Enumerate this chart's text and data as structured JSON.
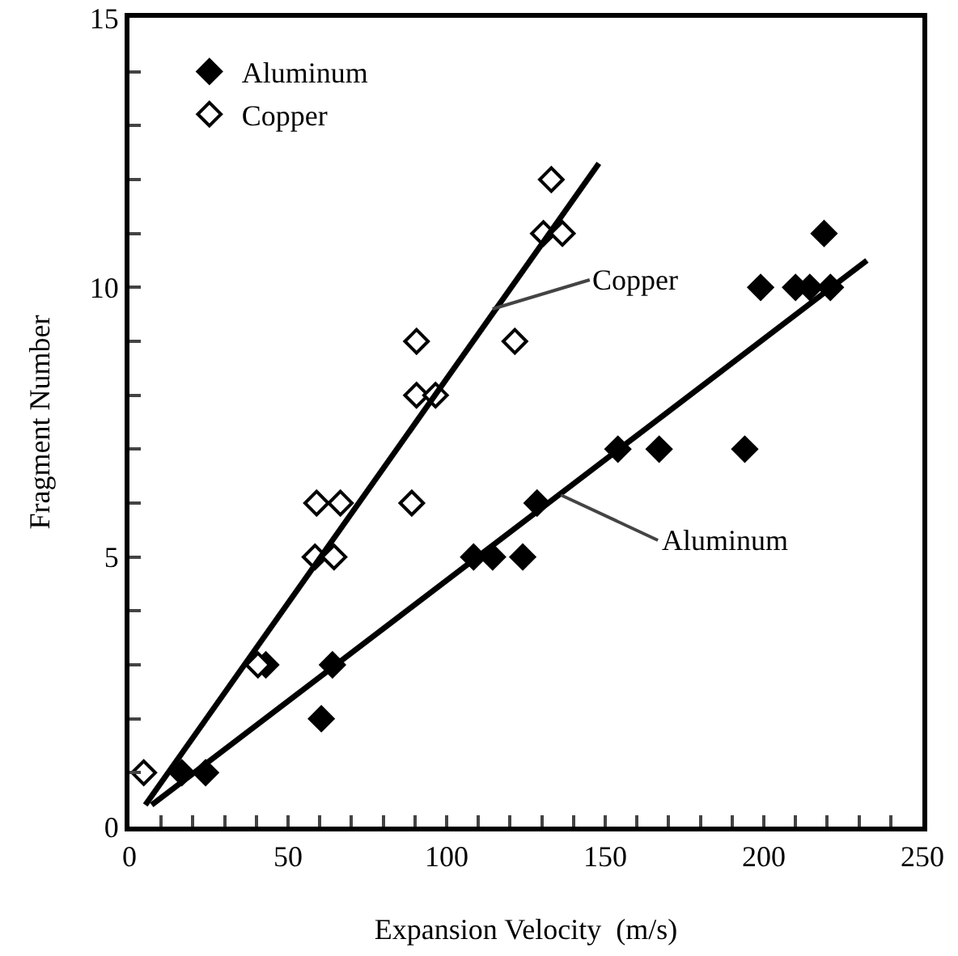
{
  "chart_data": {
    "type": "scatter",
    "xlabel": "Expansion Velocity  (m/s)",
    "ylabel": "Fragment Number",
    "xlim": [
      0,
      250
    ],
    "ylim": [
      0,
      15
    ],
    "xticks": [
      0,
      {
        "value": 10,
        "label": null
      },
      {
        "value": 20,
        "label": null
      },
      {
        "value": 30,
        "label": null
      },
      {
        "value": 40,
        "label": null
      },
      50,
      {
        "value": 60,
        "label": null
      },
      {
        "value": 70,
        "label": null
      },
      {
        "value": 80,
        "label": null
      },
      {
        "value": 90,
        "label": null
      },
      100,
      {
        "value": 110,
        "label": null
      },
      {
        "value": 120,
        "label": null
      },
      {
        "value": 130,
        "label": null
      },
      {
        "value": 140,
        "label": null
      },
      150,
      {
        "value": 160,
        "label": null
      },
      {
        "value": 170,
        "label": null
      },
      {
        "value": 180,
        "label": null
      },
      {
        "value": 190,
        "label": null
      },
      200,
      {
        "value": 210,
        "label": null
      },
      {
        "value": 220,
        "label": null
      },
      {
        "value": 230,
        "label": null
      },
      {
        "value": 240,
        "label": null
      },
      250
    ],
    "yticks": [
      0,
      {
        "value": 1,
        "label": null
      },
      {
        "value": 2,
        "label": null
      },
      {
        "value": 3,
        "label": null
      },
      {
        "value": 4,
        "label": null
      },
      5,
      {
        "value": 6,
        "label": null
      },
      {
        "value": 7,
        "label": null
      },
      {
        "value": 8,
        "label": null
      },
      {
        "value": 9,
        "label": null
      },
      10,
      {
        "value": 11,
        "label": null
      },
      {
        "value": 12,
        "label": null
      },
      {
        "value": 13,
        "label": null
      },
      {
        "value": 14,
        "label": null
      },
      15
    ],
    "grid": false,
    "legend": "top left",
    "series": [
      {
        "name": "Aluminum",
        "marker": "diamond",
        "color": "#000000",
        "x": [
          16.5,
          24,
          43,
          60.5,
          64,
          108.5,
          114.5,
          124,
          128.5,
          154,
          167,
          194,
          199,
          210,
          214.5,
          219,
          221
        ],
        "values": [
          1,
          1,
          3,
          2,
          3,
          5,
          5,
          5,
          6,
          7,
          7,
          7,
          10,
          10,
          10,
          11,
          10
        ]
      },
      {
        "name": "Copper",
        "marker": "diamond",
        "color": "#ffffff",
        "x": [
          4.5,
          40.5,
          58.5,
          59,
          64.5,
          66.5,
          89,
          90.5,
          90.5,
          96.5,
          121.5,
          130.5,
          133,
          136.5
        ],
        "values": [
          1,
          3,
          5,
          6,
          5,
          6,
          6,
          8,
          9,
          8,
          9,
          11,
          12,
          11
        ]
      },
      {
        "type": "line",
        "marker": "none",
        "color": "#000000",
        "x": [
          5,
          148
        ],
        "values": [
          0.4,
          12.3
        ]
      },
      {
        "type": "line",
        "marker": "none",
        "color": "#000000",
        "x": [
          7,
          232.5
        ],
        "values": [
          0.4,
          10.5
        ]
      }
    ],
    "annotations": [
      {
        "text": "Copper",
        "x": 114.5,
        "y": 9.6
      },
      {
        "text": "Aluminum",
        "x": 136,
        "y": 6.15
      }
    ]
  }
}
